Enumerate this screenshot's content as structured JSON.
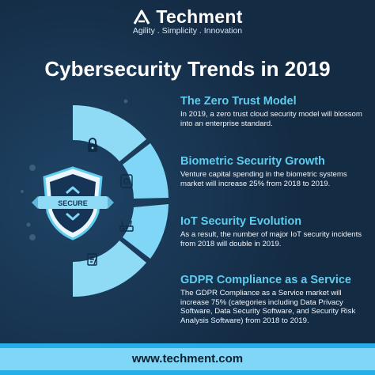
{
  "header": {
    "brand": "Techment",
    "tagline": "Agility . Simplicity . Innovation",
    "logo_icon": "chevron-up-logo-icon"
  },
  "title": "Cybersecurity Trends in 2019",
  "shield": {
    "label": "SECURE",
    "icon": "shield-icon"
  },
  "items": [
    {
      "title": "The Zero Trust Model",
      "description": "In 2019, a zero trust cloud security model will blossom into an enterprise standard.",
      "icon": "lock-icon"
    },
    {
      "title": "Biometric Security Growth",
      "description": "Venture capital spending in the biometric systems market will increase 25% from 2018 to 2019.",
      "icon": "fingerprint-icon"
    },
    {
      "title": "IoT Security Evolution",
      "description": "As a result, the number of major IoT security incidents from 2018 will double in 2019.",
      "icon": "router-icon"
    },
    {
      "title": "GDPR Compliance as a Service",
      "description": "The GDPR Compliance as a Service market will increase 75% (categories including Data Privacy Software, Data Security Software, and Security Risk Analysis Software) from 2018 to 2019.",
      "icon": "document-icon"
    }
  ],
  "footer": {
    "url": "www.techment.com"
  },
  "colors": {
    "background": "#142b44",
    "accent": "#5ecdf0",
    "segment": "#7fd6f6",
    "footer": "#26aee6"
  }
}
